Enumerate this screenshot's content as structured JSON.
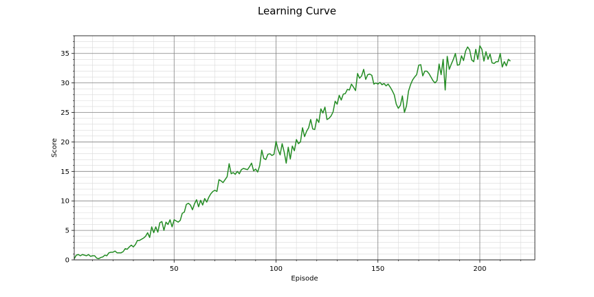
{
  "chart_data": {
    "type": "line",
    "title": "Learning Curve",
    "xlabel": "Episode",
    "ylabel": "Score",
    "xlim": [
      1,
      227
    ],
    "ylim": [
      0,
      38
    ],
    "x_ticks": [
      50,
      100,
      150,
      200
    ],
    "y_ticks": [
      0,
      5,
      10,
      15,
      20,
      25,
      30,
      35
    ],
    "x_minor_step": 10,
    "y_minor_step": 1,
    "grid": "major and minor",
    "line_color": "#228b22",
    "major_grid_color": "#808080",
    "minor_grid_color": "#d9d9d9",
    "series": [
      {
        "values": [
          0.2,
          0.8,
          0.9,
          0.7,
          0.9,
          0.8,
          0.7,
          0.9,
          0.6,
          0.7,
          0.7,
          0.3,
          0.2,
          0.4,
          0.5,
          0.8,
          0.7,
          1.2,
          1.3,
          1.3,
          1.5,
          1.2,
          1.2,
          1.2,
          1.4,
          1.9,
          1.8,
          2.2,
          2.5,
          2.2,
          2.6,
          3.3,
          3.3,
          3.5,
          3.7,
          4.0,
          4.6,
          3.8,
          5.6,
          4.6,
          5.6,
          4.7,
          6.3,
          6.5,
          5.0,
          6.4,
          6.0,
          6.8,
          5.6,
          6.8,
          6.6,
          6.4,
          6.7,
          7.9,
          8.1,
          9.4,
          9.6,
          9.3,
          8.5,
          9.5,
          10.2,
          9.0,
          10.1,
          9.3,
          10.4,
          9.8,
          10.6,
          11.2,
          11.6,
          11.8,
          11.6,
          13.6,
          13.4,
          13.1,
          13.6,
          14.1,
          16.3,
          14.6,
          14.8,
          14.5,
          15.0,
          14.6,
          15.3,
          15.5,
          15.4,
          15.3,
          15.8,
          16.4,
          15.1,
          15.4,
          14.9,
          16.0,
          18.6,
          17.2,
          17.0,
          17.9,
          18.0,
          17.7,
          17.9,
          20.1,
          18.7,
          17.8,
          19.7,
          18.3,
          16.4,
          19.1,
          17.1,
          19.3,
          18.5,
          20.4,
          19.7,
          20.0,
          22.4,
          20.9,
          21.8,
          22.4,
          23.8,
          22.2,
          22.1,
          23.9,
          23.3,
          25.6,
          24.9,
          25.9,
          23.8,
          24.0,
          24.4,
          25.1,
          26.9,
          26.4,
          27.9,
          27.1,
          28.1,
          28.2,
          28.9,
          28.8,
          29.8,
          29.3,
          28.7,
          31.6,
          30.8,
          31.2,
          32.3,
          30.6,
          31.4,
          31.5,
          31.3,
          29.8,
          30.0,
          29.8,
          30.1,
          29.7,
          29.9,
          29.5,
          29.8,
          29.3,
          28.7,
          28.0,
          26.4,
          25.7,
          26.2,
          27.8,
          25.0,
          26.1,
          28.6,
          29.7,
          30.5,
          31.0,
          31.4,
          33.0,
          33.1,
          31.2,
          32.0,
          32.0,
          31.6,
          31.0,
          30.4,
          30.0,
          30.4,
          33.2,
          31.4,
          34.0,
          28.8,
          34.5,
          32.3,
          33.2,
          34.0,
          35.0,
          33.0,
          33.1,
          34.6,
          33.8,
          35.4,
          36.1,
          35.6,
          33.9,
          33.6,
          35.7,
          34.0,
          36.3,
          35.7,
          33.7,
          35.3,
          34.0,
          34.9,
          33.4,
          33.3,
          33.6,
          33.6,
          35.0,
          32.7,
          33.6,
          32.9,
          34.0,
          33.7
        ]
      }
    ]
  }
}
